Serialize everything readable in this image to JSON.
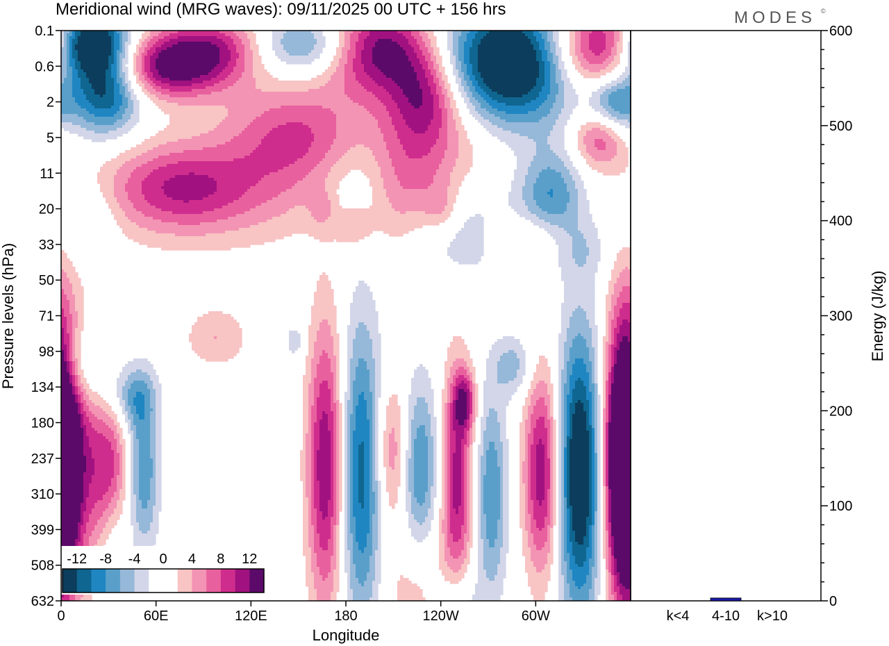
{
  "title": "Meridional wind (MRG waves):  09/11/2025  00 UTC  + 156 hrs",
  "logo": "MODES",
  "logo_mark": "©",
  "chart_data": [
    {
      "type": "heatmap",
      "name": "hovmoller-section",
      "xlabel": "Longitude",
      "ylabel": "Pressure levels (hPa)",
      "x_ticks": [
        "0",
        "60E",
        "120E",
        "180",
        "120W",
        "60W"
      ],
      "x_range_deg": [
        0,
        360
      ],
      "y_ticks": [
        "0.1",
        "0.6",
        "2",
        "5",
        "11",
        "20",
        "33",
        "50",
        "71",
        "98",
        "134",
        "180",
        "237",
        "310",
        "399",
        "508",
        "632"
      ],
      "colorbar": {
        "labels": [
          "-12",
          "-8",
          "-4",
          "0",
          "4",
          "8",
          "12"
        ],
        "levels": [
          -14,
          -12,
          -10,
          -8,
          -6,
          -4,
          -2,
          0,
          2,
          4,
          6,
          8,
          10,
          12,
          14
        ],
        "colors": [
          "#0c3d5c",
          "#0f6690",
          "#1f86c2",
          "#5a9fca",
          "#96b8d9",
          "#d2d6e8",
          "#ffffff",
          "#ffffff",
          "#f8c4c4",
          "#f394b4",
          "#e9609e",
          "#cf2d8d",
          "#a11280",
          "#5c0a6a"
        ]
      },
      "blobs": [
        {
          "lon": 2,
          "lev": 12.0,
          "v": 16,
          "w": 12,
          "h": 2.6
        },
        {
          "lon": 30,
          "lev": 12.3,
          "v": 9,
          "w": 9,
          "h": 1.4
        },
        {
          "lon": 52,
          "lev": 12.3,
          "v": -8,
          "w": 7,
          "h": 1.6
        },
        {
          "lon": 45,
          "lev": 10.3,
          "v": -6,
          "w": 10,
          "h": 0.6
        },
        {
          "lon": 12,
          "lev": 9.4,
          "v": -6,
          "w": 12,
          "h": 0.8
        },
        {
          "lon": 98,
          "lev": 8.6,
          "v": 4,
          "w": 14,
          "h": 0.6
        },
        {
          "lon": 33,
          "lev": 14.6,
          "v": -3,
          "w": 6,
          "h": 1.4
        },
        {
          "lon": 148,
          "lev": 8.7,
          "v": -4,
          "w": 4,
          "h": 0.3
        },
        {
          "lon": 167,
          "lev": 12.2,
          "v": 12,
          "w": 8,
          "h": 2.8
        },
        {
          "lon": 190,
          "lev": 12.4,
          "v": -11,
          "w": 9,
          "h": 3.0
        },
        {
          "lon": 210,
          "lev": 11.8,
          "v": 7,
          "w": 8,
          "h": 1.4
        },
        {
          "lon": 226,
          "lev": 12.4,
          "v": -9,
          "w": 9,
          "h": 1.8
        },
        {
          "lon": 250,
          "lev": 12.6,
          "v": 11,
          "w": 7,
          "h": 2.2
        },
        {
          "lon": 255,
          "lev": 10.4,
          "v": 9,
          "w": 5,
          "h": 0.6
        },
        {
          "lon": 272,
          "lev": 13.0,
          "v": -8,
          "w": 7,
          "h": 2.0
        },
        {
          "lon": 304,
          "lev": 12.4,
          "v": 12,
          "w": 8,
          "h": 2.0
        },
        {
          "lon": 286,
          "lev": 9.4,
          "v": -5,
          "w": 9,
          "h": 0.6
        },
        {
          "lon": 328,
          "lev": 12.4,
          "v": -16,
          "w": 10,
          "h": 2.8
        },
        {
          "lon": 356,
          "lev": 12.0,
          "v": 16,
          "w": 8,
          "h": 2.8
        },
        {
          "lon": 225,
          "lev": 15.6,
          "v": 4,
          "w": 14,
          "h": 1.6
        },
        {
          "lon": 250,
          "lev": 16.2,
          "v": -5,
          "w": 10,
          "h": 0.8
        },
        {
          "lon": 28,
          "lev": 1.6,
          "v": -14,
          "w": 16,
          "h": 0.9
        },
        {
          "lon": 10,
          "lev": 0.6,
          "v": -13,
          "w": 18,
          "h": 0.7
        },
        {
          "lon": 20,
          "lev": 0.1,
          "v": -10,
          "w": 16,
          "h": 0.6
        },
        {
          "lon": 68,
          "lev": 1.1,
          "v": 12,
          "w": 28,
          "h": 0.6
        },
        {
          "lon": 100,
          "lev": 0.4,
          "v": 10,
          "w": 30,
          "h": 0.6
        },
        {
          "lon": 150,
          "lev": 0.4,
          "v": -10,
          "w": 28,
          "h": 0.6
        },
        {
          "lon": 200,
          "lev": 0.5,
          "v": 14,
          "w": 24,
          "h": 0.9
        },
        {
          "lon": 230,
          "lev": 1.8,
          "v": 9,
          "w": 16,
          "h": 0.9
        },
        {
          "lon": 235,
          "lev": 3.2,
          "v": 5,
          "w": 28,
          "h": 1.2
        },
        {
          "lon": 285,
          "lev": 0.9,
          "v": -18,
          "w": 30,
          "h": 1.2
        },
        {
          "lon": 345,
          "lev": 0.5,
          "v": 16,
          "w": 26,
          "h": 0.9
        },
        {
          "lon": 350,
          "lev": 2.0,
          "v": -10,
          "w": 12,
          "h": 0.6
        },
        {
          "lon": 340,
          "lev": 3.0,
          "v": 8,
          "w": 12,
          "h": 0.6
        },
        {
          "lon": 95,
          "lev": 4.5,
          "v": 5,
          "w": 60,
          "h": 1.1
        },
        {
          "lon": 143,
          "lev": 2.8,
          "v": 6,
          "w": 30,
          "h": 1.0
        },
        {
          "lon": 175,
          "lev": 3.4,
          "v": 4,
          "w": 28,
          "h": 1.0
        },
        {
          "lon": 190,
          "lev": 4.0,
          "v": -6,
          "w": 24,
          "h": 1.0
        },
        {
          "lon": 215,
          "lev": 4.6,
          "v": 6,
          "w": 18,
          "h": 1.2
        },
        {
          "lon": 310,
          "lev": 4.6,
          "v": -8,
          "w": 14,
          "h": 0.9
        },
        {
          "lon": 252,
          "lev": 5.6,
          "v": -4,
          "w": 30,
          "h": 1.0
        },
        {
          "lon": 75,
          "lev": 4.4,
          "v": 6,
          "w": 30,
          "h": 0.8
        },
        {
          "lon": 15,
          "lev": 5.2,
          "v": -4,
          "w": 14,
          "h": 0.8
        },
        {
          "lon": 330,
          "lev": 6.1,
          "v": -3,
          "w": 12,
          "h": 0.6
        },
        {
          "lon": 295,
          "lev": 5.8,
          "v": 4,
          "w": 18,
          "h": 0.5
        },
        {
          "lon": 165,
          "lev": 5.0,
          "v": 3,
          "w": 6,
          "h": 0.4
        },
        {
          "lon": 185,
          "lev": 5.5,
          "v": 4,
          "w": 8,
          "h": 0.4
        },
        {
          "lon": 240,
          "lev": 5.0,
          "v": 4,
          "w": 8,
          "h": 0.5
        }
      ],
      "nodes": [
        {
          "lon": 0,
          "lev": 0.1
        },
        {
          "lon": 60,
          "lev": 0.1
        },
        {
          "lon": 120,
          "lev": 0.1
        },
        {
          "lon": 180,
          "lev": 0.1
        },
        {
          "lon": 240,
          "lev": 0.1
        },
        {
          "lon": 300,
          "lev": 0.1
        }
      ]
    },
    {
      "type": "bar",
      "name": "energy-panel",
      "categories": [
        "k<4",
        "4-10",
        "k>10"
      ],
      "values": [
        0,
        3,
        0
      ],
      "ylabel": "Energy (J/kg)",
      "ylim": [
        0,
        600
      ],
      "y_ticks": [
        "0",
        "100",
        "200",
        "300",
        "400",
        "500",
        "600"
      ],
      "bar_color": "#1a1aa6"
    }
  ]
}
